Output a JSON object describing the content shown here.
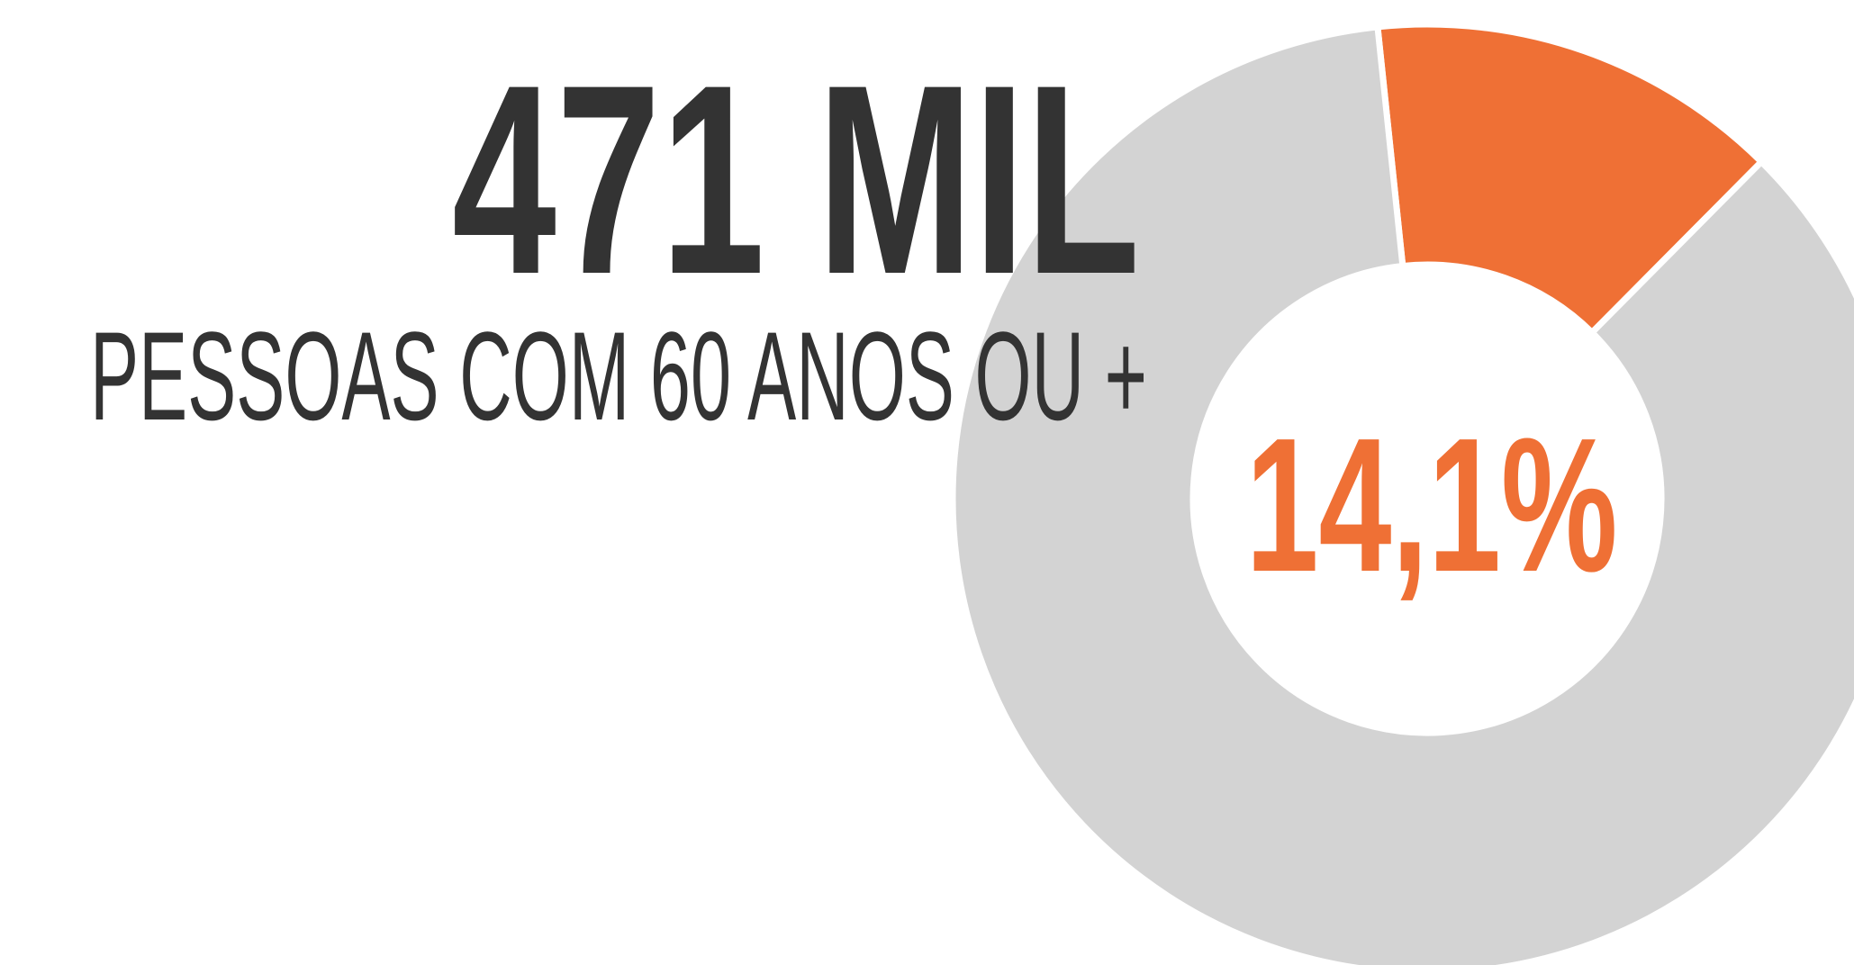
{
  "chart_data": {
    "type": "donut",
    "title": "471 MIL",
    "subtitle": "PESSOAS COM 60 ANOS OU +",
    "values": [
      14.1,
      85.9
    ],
    "value_labels": [
      "14,1%",
      null
    ],
    "colors": [
      "#ef7035",
      "#d3d3d3"
    ]
  }
}
